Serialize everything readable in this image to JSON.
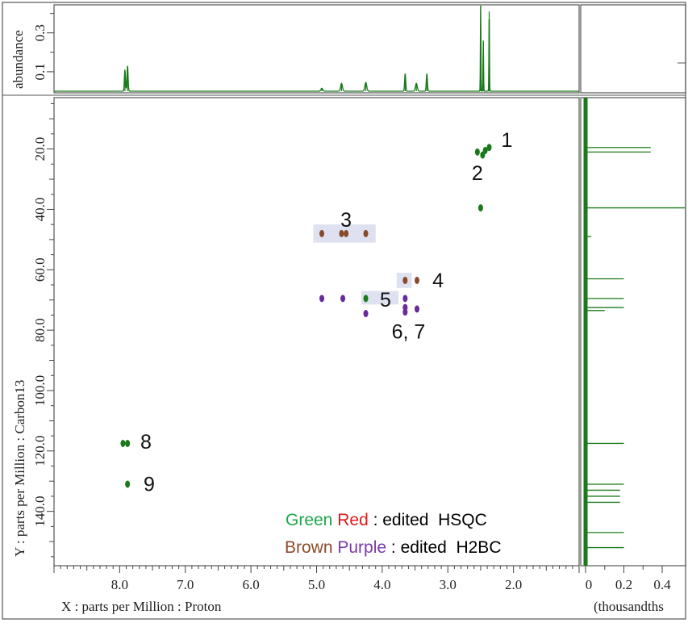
{
  "chart_data": {
    "type": "scatter",
    "description_source": "2D NMR spectrum (edited HSQC / edited H2BC overlay) with 1D projections",
    "x_axis": {
      "label": "X : parts per Million : Proton",
      "ticks": [
        "8.0",
        "7.0",
        "6.0",
        "5.0",
        "4.0",
        "3.0",
        "2.0"
      ],
      "tick_values": [
        8.0,
        7.0,
        6.0,
        5.0,
        4.0,
        3.0,
        2.0
      ],
      "range": [
        9.0,
        1.0
      ],
      "reversed": true
    },
    "y_axis": {
      "label": "Y : parts per Million : Carbon13",
      "ticks": [
        "20.0",
        "40.0",
        "60.0",
        "80.0",
        "100.0",
        "120.0",
        "140.0"
      ],
      "tick_values": [
        20,
        40,
        60,
        80,
        100,
        120,
        140
      ],
      "range": [
        3.0,
        158.0
      ],
      "reversed": true
    },
    "top_projection": {
      "ylabel": "abundance",
      "ticks": [
        "0.1",
        "0.3"
      ],
      "tick_values": [
        0.1,
        0.3
      ],
      "color": "#1a7a1a",
      "peaks": [
        {
          "ppm": 7.92,
          "height": 0.11
        },
        {
          "ppm": 7.88,
          "height": 0.13
        },
        {
          "ppm": 4.92,
          "height": 0.015
        },
        {
          "ppm": 4.62,
          "height": 0.04
        },
        {
          "ppm": 4.25,
          "height": 0.045
        },
        {
          "ppm": 3.65,
          "height": 0.09
        },
        {
          "ppm": 3.48,
          "height": 0.04
        },
        {
          "ppm": 3.32,
          "height": 0.09
        },
        {
          "ppm": 2.5,
          "height": 0.44
        },
        {
          "ppm": 2.46,
          "height": 0.26
        },
        {
          "ppm": 2.37,
          "height": 0.41
        }
      ]
    },
    "right_projection": {
      "xlabel": "(thousandths",
      "ticks": [
        "0",
        "0.2",
        "0.4"
      ],
      "tick_values": [
        0,
        0.2,
        0.4
      ],
      "color": "#1a7a1a",
      "peaks": [
        {
          "ppm": 19.5,
          "height": 0.34
        },
        {
          "ppm": 21.0,
          "height": 0.34
        },
        {
          "ppm": 39.5,
          "height": 0.55
        },
        {
          "ppm": 49.0,
          "height": 0.03
        },
        {
          "ppm": 63.0,
          "height": 0.2
        },
        {
          "ppm": 69.5,
          "height": 0.2
        },
        {
          "ppm": 72.5,
          "height": 0.2
        },
        {
          "ppm": 73.5,
          "height": 0.1
        },
        {
          "ppm": 117.5,
          "height": 0.2
        },
        {
          "ppm": 131.0,
          "height": 0.2
        },
        {
          "ppm": 133.0,
          "height": 0.18
        },
        {
          "ppm": 135.0,
          "height": 0.18
        },
        {
          "ppm": 137.0,
          "height": 0.18
        },
        {
          "ppm": 147.0,
          "height": 0.2
        },
        {
          "ppm": 152.0,
          "height": 0.2
        }
      ]
    },
    "colors": {
      "green": "#1a7a1a",
      "brown": "#8a4a2a",
      "purple": "#6a2a9a",
      "highlight": "#d8dcec"
    },
    "cross_peaks": [
      {
        "x": 2.37,
        "y": 19.5,
        "color": "green"
      },
      {
        "x": 2.43,
        "y": 20.5,
        "color": "green"
      },
      {
        "x": 2.47,
        "y": 22.0,
        "color": "green"
      },
      {
        "x": 2.55,
        "y": 21.0,
        "color": "green"
      },
      {
        "x": 2.5,
        "y": 39.5,
        "color": "green"
      },
      {
        "x": 4.92,
        "y": 48.0,
        "color": "brown"
      },
      {
        "x": 4.62,
        "y": 48.0,
        "color": "brown"
      },
      {
        "x": 4.55,
        "y": 48.0,
        "color": "brown"
      },
      {
        "x": 4.25,
        "y": 48.0,
        "color": "brown"
      },
      {
        "x": 3.65,
        "y": 63.5,
        "color": "brown"
      },
      {
        "x": 3.47,
        "y": 63.5,
        "color": "brown"
      },
      {
        "x": 4.92,
        "y": 69.5,
        "color": "purple"
      },
      {
        "x": 4.6,
        "y": 69.5,
        "color": "purple"
      },
      {
        "x": 4.25,
        "y": 69.5,
        "color": "green"
      },
      {
        "x": 4.25,
        "y": 74.5,
        "color": "purple"
      },
      {
        "x": 3.65,
        "y": 69.5,
        "color": "purple"
      },
      {
        "x": 3.65,
        "y": 72.5,
        "color": "purple"
      },
      {
        "x": 3.65,
        "y": 74.0,
        "color": "purple"
      },
      {
        "x": 3.47,
        "y": 73.0,
        "color": "purple"
      },
      {
        "x": 7.95,
        "y": 117.5,
        "color": "green"
      },
      {
        "x": 7.88,
        "y": 117.5,
        "color": "green"
      },
      {
        "x": 7.88,
        "y": 131.0,
        "color": "green"
      }
    ],
    "highlight_boxes": [
      {
        "x1": 5.05,
        "x2": 4.1,
        "y1": 45.0,
        "y2": 51.0
      },
      {
        "x1": 3.78,
        "x2": 3.55,
        "y1": 61.0,
        "y2": 66.0
      },
      {
        "x1": 4.32,
        "x2": 3.75,
        "y1": 67.0,
        "y2": 71.5
      }
    ],
    "annotations": [
      {
        "text": "1",
        "x": 2.1,
        "y": 17.5
      },
      {
        "text": "2",
        "x": 2.55,
        "y": 28.5
      },
      {
        "text": "3",
        "x": 4.55,
        "y": 44.0
      },
      {
        "text": "4",
        "x": 3.15,
        "y": 64.0
      },
      {
        "text": "5",
        "x": 3.95,
        "y": 70.5
      },
      {
        "text": "6, 7",
        "x": 3.6,
        "y": 81.0
      },
      {
        "text": "8",
        "x": 7.6,
        "y": 117.5
      },
      {
        "text": "9",
        "x": 7.55,
        "y": 131.5
      }
    ],
    "legend": {
      "line1": [
        {
          "text": "Green",
          "color": "#1aa84a"
        },
        {
          "text": " ",
          "color": "#000000"
        },
        {
          "text": "Red",
          "color": "#e01a1a"
        },
        {
          "text": " : edited  HSQC",
          "color": "#000000"
        }
      ],
      "line2": [
        {
          "text": "Brown",
          "color": "#8a4a2a"
        },
        {
          "text": " ",
          "color": "#000000"
        },
        {
          "text": "Purple",
          "color": "#7a3aaa"
        },
        {
          "text": " : edited  H2BC",
          "color": "#000000"
        }
      ]
    }
  }
}
